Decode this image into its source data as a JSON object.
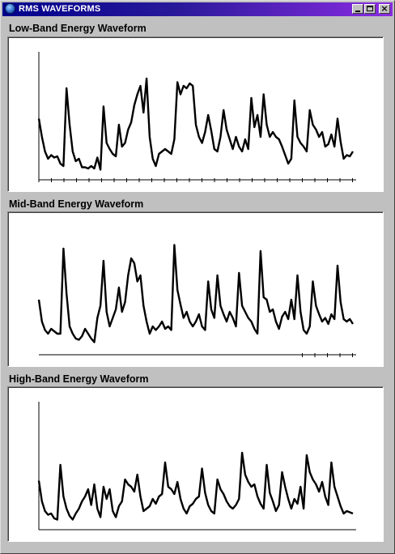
{
  "window": {
    "title": "RMS WAVEFORMS",
    "controls": {
      "minimize": "minimize-icon",
      "maximize": "maximize-icon",
      "close": "close-icon"
    },
    "titlebar_colors": [
      "#00008b",
      "#8a2be2"
    ]
  },
  "panels": [
    {
      "title": "Low-Band Energy Waveform",
      "y_axis": true,
      "x_ticks": "full",
      "waveform": [
        0.45,
        0.3,
        0.18,
        0.12,
        0.15,
        0.13,
        0.14,
        0.08,
        0.06,
        0.7,
        0.4,
        0.18,
        0.1,
        0.12,
        0.05,
        0.05,
        0.04,
        0.06,
        0.04,
        0.13,
        0.03,
        0.55,
        0.25,
        0.2,
        0.16,
        0.14,
        0.4,
        0.22,
        0.25,
        0.36,
        0.42,
        0.56,
        0.65,
        0.72,
        0.5,
        0.78,
        0.3,
        0.12,
        0.06,
        0.16,
        0.18,
        0.2,
        0.18,
        0.16,
        0.28,
        0.75,
        0.65,
        0.72,
        0.7,
        0.74,
        0.72,
        0.4,
        0.3,
        0.25,
        0.34,
        0.48,
        0.35,
        0.2,
        0.18,
        0.3,
        0.52,
        0.36,
        0.28,
        0.2,
        0.3,
        0.22,
        0.18,
        0.28,
        0.2,
        0.62,
        0.38,
        0.48,
        0.3,
        0.65,
        0.4,
        0.3,
        0.34,
        0.3,
        0.28,
        0.22,
        0.15,
        0.08,
        0.12,
        0.6,
        0.3,
        0.25,
        0.22,
        0.18,
        0.52,
        0.4,
        0.36,
        0.3,
        0.34,
        0.22,
        0.24,
        0.32,
        0.22,
        0.45,
        0.26,
        0.12,
        0.15,
        0.14,
        0.18
      ]
    },
    {
      "title": "Mid-Band Energy Waveform",
      "y_axis": false,
      "x_ticks": "right",
      "waveform": [
        0.4,
        0.22,
        0.15,
        0.12,
        0.16,
        0.14,
        0.12,
        0.12,
        0.82,
        0.45,
        0.18,
        0.12,
        0.08,
        0.07,
        0.1,
        0.16,
        0.12,
        0.08,
        0.05,
        0.25,
        0.35,
        0.72,
        0.3,
        0.18,
        0.25,
        0.32,
        0.5,
        0.3,
        0.38,
        0.6,
        0.74,
        0.7,
        0.55,
        0.6,
        0.35,
        0.22,
        0.12,
        0.18,
        0.15,
        0.18,
        0.22,
        0.16,
        0.18,
        0.15,
        0.85,
        0.48,
        0.36,
        0.25,
        0.3,
        0.22,
        0.18,
        0.22,
        0.28,
        0.18,
        0.15,
        0.55,
        0.32,
        0.25,
        0.6,
        0.35,
        0.28,
        0.22,
        0.3,
        0.25,
        0.18,
        0.62,
        0.35,
        0.3,
        0.25,
        0.22,
        0.16,
        0.12,
        0.8,
        0.42,
        0.4,
        0.3,
        0.32,
        0.22,
        0.16,
        0.26,
        0.3,
        0.24,
        0.4,
        0.24,
        0.6,
        0.3,
        0.15,
        0.12,
        0.18,
        0.55,
        0.35,
        0.28,
        0.22,
        0.25,
        0.2,
        0.28,
        0.24,
        0.68,
        0.38,
        0.24,
        0.22,
        0.24,
        0.2
      ]
    },
    {
      "title": "High-Band Energy Waveform",
      "y_axis": true,
      "x_ticks": "none",
      "waveform": [
        0.35,
        0.18,
        0.1,
        0.07,
        0.08,
        0.04,
        0.03,
        0.48,
        0.22,
        0.12,
        0.06,
        0.03,
        0.08,
        0.12,
        0.18,
        0.22,
        0.28,
        0.15,
        0.32,
        0.12,
        0.05,
        0.3,
        0.2,
        0.28,
        0.1,
        0.05,
        0.14,
        0.18,
        0.36,
        0.32,
        0.3,
        0.26,
        0.4,
        0.22,
        0.1,
        0.12,
        0.14,
        0.2,
        0.16,
        0.22,
        0.24,
        0.5,
        0.3,
        0.28,
        0.24,
        0.34,
        0.2,
        0.12,
        0.08,
        0.14,
        0.16,
        0.2,
        0.22,
        0.45,
        0.25,
        0.15,
        0.1,
        0.08,
        0.36,
        0.28,
        0.24,
        0.18,
        0.14,
        0.12,
        0.15,
        0.2,
        0.58,
        0.4,
        0.34,
        0.3,
        0.32,
        0.22,
        0.16,
        0.12,
        0.48,
        0.25,
        0.18,
        0.1,
        0.15,
        0.42,
        0.3,
        0.2,
        0.12,
        0.2,
        0.16,
        0.3,
        0.12,
        0.56,
        0.42,
        0.36,
        0.32,
        0.26,
        0.34,
        0.22,
        0.15,
        0.5,
        0.3,
        0.22,
        0.14,
        0.08,
        0.1,
        0.09,
        0.08
      ]
    }
  ]
}
